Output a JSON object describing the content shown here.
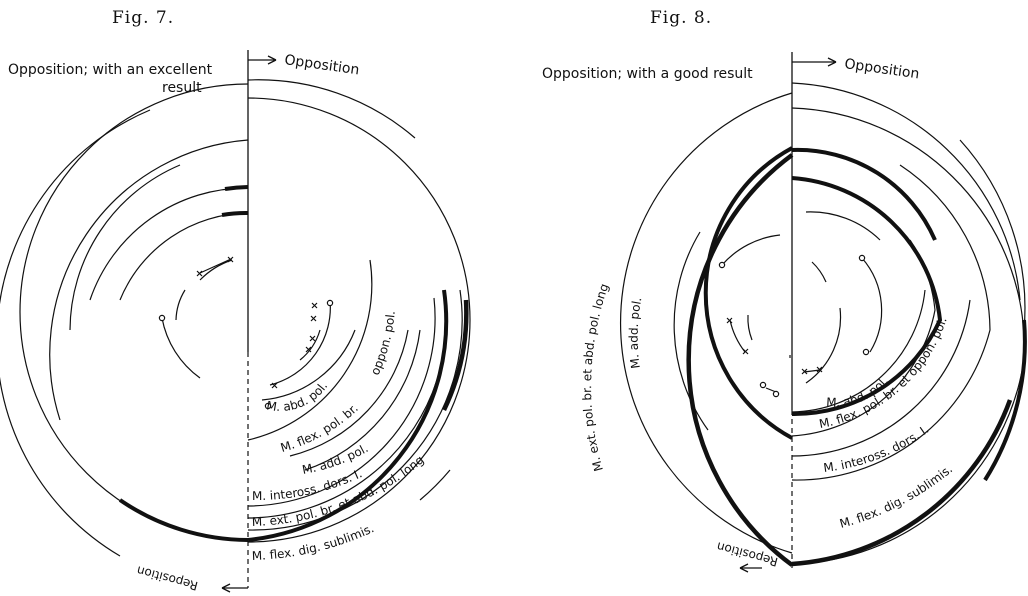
{
  "figure7": {
    "title": "Fig.  7.",
    "heading_line1": "Opposition; with an excellent",
    "heading_line2": "result",
    "opposition_label": "Opposition",
    "reposition_label": "Reposition",
    "muscles": [
      "M. abd. pol. br.",
      "M. flex. pol. br.",
      "M. add. pol.",
      "M. inteross. dors. I.",
      "M. ext. pol. br. et abd. pol. long",
      "M. flex. dig. sublimis.",
      "oppon. pol."
    ]
  },
  "figure8": {
    "title": "Fig.  8.",
    "heading": "Opposition; with a good result",
    "opposition_label": "Opposition",
    "reposition_label": "Reposition",
    "muscles": [
      "M. ext. pol. br. et abd. pol. long",
      "M. add. pol.",
      "M. abd. pol. br.",
      "M. flex. pol. br. et oppon. pol.",
      "M. inteross. dors. I.",
      "M. flex. dig. sublimis."
    ]
  }
}
